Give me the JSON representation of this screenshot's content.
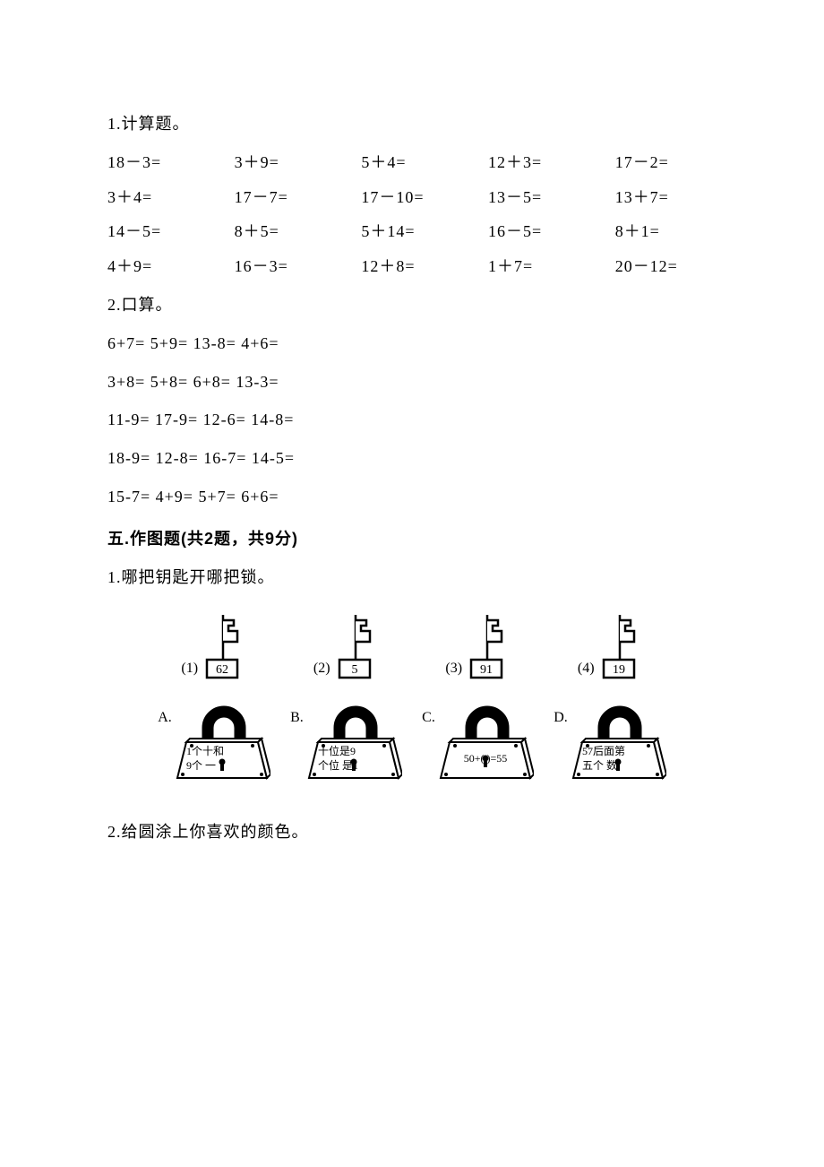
{
  "colors": {
    "bg": "#ffffff",
    "text": "#000000",
    "stroke": "#000000"
  },
  "fonts": {
    "body_family": "SimSun",
    "body_size_pt": 14,
    "heading_family": "SimHei",
    "heading_size_pt": 14,
    "heading_weight": "bold"
  },
  "q1": {
    "title": "1.计算题。",
    "rows": [
      [
        "18－3=",
        "3＋9=",
        "5＋4=",
        "12＋3=",
        "17－2="
      ],
      [
        "3＋4=",
        "17－7=",
        "17－10=",
        "13－5=",
        "13＋7="
      ],
      [
        "14－5=",
        "8＋5=",
        "5＋14=",
        "16－5=",
        "8＋1="
      ],
      [
        "4＋9=",
        "16－3=",
        "12＋8=",
        "1＋7=",
        "20－12="
      ]
    ]
  },
  "q2": {
    "title": "2.口算。",
    "lines": [
      "6+7= 5+9= 13-8= 4+6=",
      "3+8=    5+8= 6+8= 13-3=",
      "11-9= 17-9=   12-6= 14-8=",
      "18-9= 12-8= 16-7=   14-5=",
      "15-7= 4+9= 5+7= 6+6="
    ]
  },
  "section5": {
    "title": "五.作图题(共2题，共9分)",
    "q1": {
      "title": "1.哪把钥匙开哪把锁。",
      "keys": [
        {
          "label": "(1)",
          "value": "62"
        },
        {
          "label": "(2)",
          "value": "5"
        },
        {
          "label": "(3)",
          "value": "91"
        },
        {
          "label": "(4)",
          "value": "19"
        }
      ],
      "locks": [
        {
          "label": "A.",
          "line1": "1个十和",
          "line2": "9个  一"
        },
        {
          "label": "B.",
          "line1": "十位是9",
          "line2": "个位  是1"
        },
        {
          "label": "C.",
          "line1": "50+(  )=55",
          "line2": ""
        },
        {
          "label": "D.",
          "line1": "57后面第",
          "line2": "五个  数"
        }
      ],
      "style": {
        "key_box_w": 30,
        "key_box_h": 20,
        "key_stem_h": 46,
        "key_stroke_w": 2,
        "lock_w": 100,
        "lock_h": 56,
        "shackle_r": 18,
        "shackle_stroke": 12,
        "stroke_color": "#000000",
        "fill_color": "#ffffff"
      }
    },
    "q2": {
      "title": "2.给圆涂上你喜欢的颜色。"
    }
  }
}
